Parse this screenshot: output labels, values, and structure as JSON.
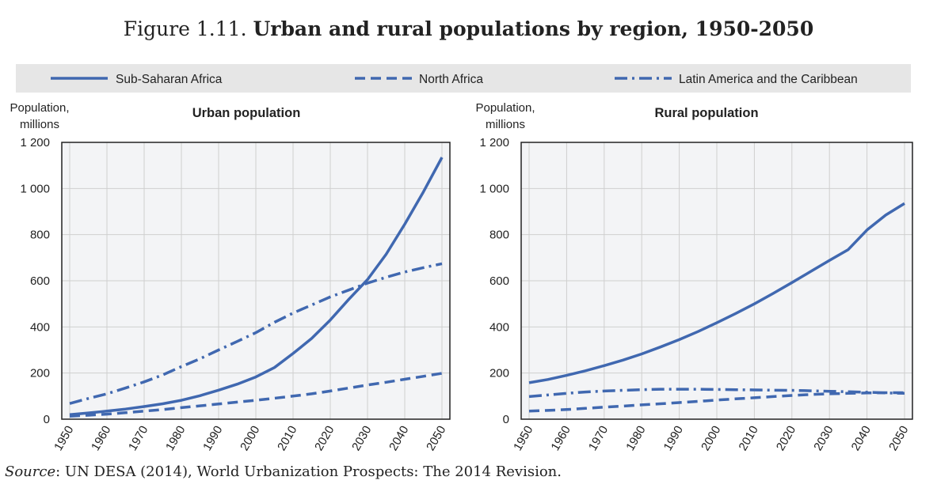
{
  "figure": {
    "number": "Figure 1.11.",
    "title": "Urban and rural populations by region, 1950-2050"
  },
  "source": {
    "label": "Source",
    "text": ": UN DESA (2014), World Urbanization Prospects: The 2014 Revision."
  },
  "colors": {
    "series": "#4068b0",
    "grid": "#cfcfcf",
    "legend_bg": "#e6e6e6",
    "panel_bg": "#f3f4f6"
  },
  "chart_data": [
    {
      "type": "line",
      "title": "Urban population",
      "ylabel": "Population, millions",
      "ylim": [
        0,
        1200
      ],
      "yticks": [
        0,
        200,
        400,
        600,
        800,
        1000,
        1200
      ],
      "ytick_labels": [
        "0",
        "200",
        "400",
        "600",
        "800",
        "1 000",
        "1 200"
      ],
      "xlim": [
        1950,
        2050
      ],
      "xticks": [
        "1950",
        "1960",
        "1970",
        "1980",
        "1990",
        "2000",
        "2010",
        "2020",
        "2030",
        "2040",
        "2050"
      ],
      "x": [
        1950,
        1955,
        1960,
        1965,
        1970,
        1975,
        1980,
        1985,
        1990,
        1995,
        2000,
        2005,
        2010,
        2015,
        2020,
        2025,
        2030,
        2035,
        2040,
        2045,
        2050
      ],
      "series": [
        {
          "name": "Sub-Saharan Africa",
          "style": "solid",
          "values": [
            20,
            27,
            35,
            44,
            55,
            67,
            82,
            102,
            126,
            152,
            183,
            224,
            285,
            350,
            430,
            520,
            605,
            715,
            845,
            985,
            1135
          ]
        },
        {
          "name": "North Africa",
          "style": "dashed",
          "values": [
            13,
            17,
            22,
            28,
            35,
            42,
            50,
            58,
            66,
            74,
            82,
            91,
            100,
            110,
            122,
            135,
            148,
            160,
            173,
            186,
            199
          ]
        },
        {
          "name": "Latin America and the Caribbean",
          "style": "dashdot",
          "values": [
            68,
            90,
            110,
            135,
            162,
            192,
            228,
            262,
            300,
            337,
            375,
            420,
            460,
            495,
            530,
            560,
            590,
            615,
            638,
            657,
            674
          ]
        }
      ]
    },
    {
      "type": "line",
      "title": "Rural population",
      "ylabel": "Population, millions",
      "ylim": [
        0,
        1200
      ],
      "yticks": [
        0,
        200,
        400,
        600,
        800,
        1000,
        1200
      ],
      "ytick_labels": [
        "0",
        "200",
        "400",
        "600",
        "800",
        "1 000",
        "1 200"
      ],
      "xlim": [
        1950,
        2050
      ],
      "xticks": [
        "1950",
        "1960",
        "1970",
        "1980",
        "1990",
        "2000",
        "2010",
        "2020",
        "2030",
        "2040",
        "2050"
      ],
      "x": [
        1950,
        1955,
        1960,
        1965,
        1970,
        1975,
        1980,
        1985,
        1990,
        1995,
        2000,
        2005,
        2010,
        2015,
        2020,
        2025,
        2030,
        2035,
        2040,
        2045,
        2050
      ],
      "series": [
        {
          "name": "Sub-Saharan Africa",
          "style": "solid",
          "values": [
            158,
            172,
            190,
            210,
            232,
            256,
            283,
            313,
            345,
            380,
            418,
            458,
            500,
            545,
            592,
            640,
            688,
            735,
            820,
            885,
            935
          ]
        },
        {
          "name": "North Africa",
          "style": "dashed",
          "values": [
            35,
            38,
            42,
            47,
            52,
            57,
            62,
            67,
            72,
            77,
            83,
            88,
            93,
            98,
            103,
            107,
            110,
            112,
            114,
            115,
            115
          ]
        },
        {
          "name": "Latin America and the Caribbean",
          "style": "dashdot",
          "values": [
            98,
            105,
            112,
            118,
            122,
            125,
            128,
            130,
            130,
            130,
            129,
            128,
            127,
            126,
            125,
            123,
            121,
            119,
            117,
            114,
            112
          ]
        }
      ]
    }
  ]
}
